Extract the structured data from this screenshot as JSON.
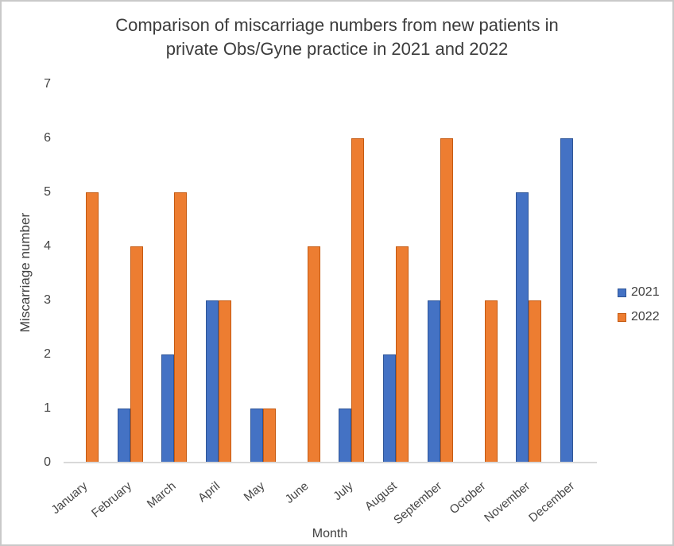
{
  "window": {
    "background": "#ffffff",
    "frame_border_color": "#c9c9c9"
  },
  "title_lines": [
    "Comparison of miscarriage numbers from new patients in",
    "private Obs/Gyne practice in 2021 and 2022"
  ],
  "chart_data": {
    "type": "bar",
    "title": "Comparison of miscarriage numbers from new patients in private Obs/Gyne practice in 2021 and 2022",
    "xlabel": "Month",
    "ylabel": "Miscarriage number",
    "categories": [
      "January",
      "February",
      "March",
      "April",
      "May",
      "June",
      "July",
      "August",
      "September",
      "October",
      "November",
      "December"
    ],
    "series": [
      {
        "name": "2021",
        "color": "#4472C4",
        "border_color": "#2F5597",
        "values": [
          0,
          1,
          2,
          3,
          1,
          0,
          1,
          2,
          3,
          0,
          5,
          6
        ]
      },
      {
        "name": "2022",
        "color": "#ED7D31",
        "border_color": "#C55A11",
        "values": [
          5,
          4,
          5,
          3,
          1,
          4,
          6,
          4,
          6,
          3,
          3,
          0
        ]
      }
    ],
    "ylim": [
      0,
      7
    ],
    "yticks": [
      0,
      1,
      2,
      3,
      4,
      5,
      6,
      7
    ],
    "grid": false,
    "legend_position": "right",
    "axis_color": "#d9d9d9",
    "text_color": "#404040"
  }
}
